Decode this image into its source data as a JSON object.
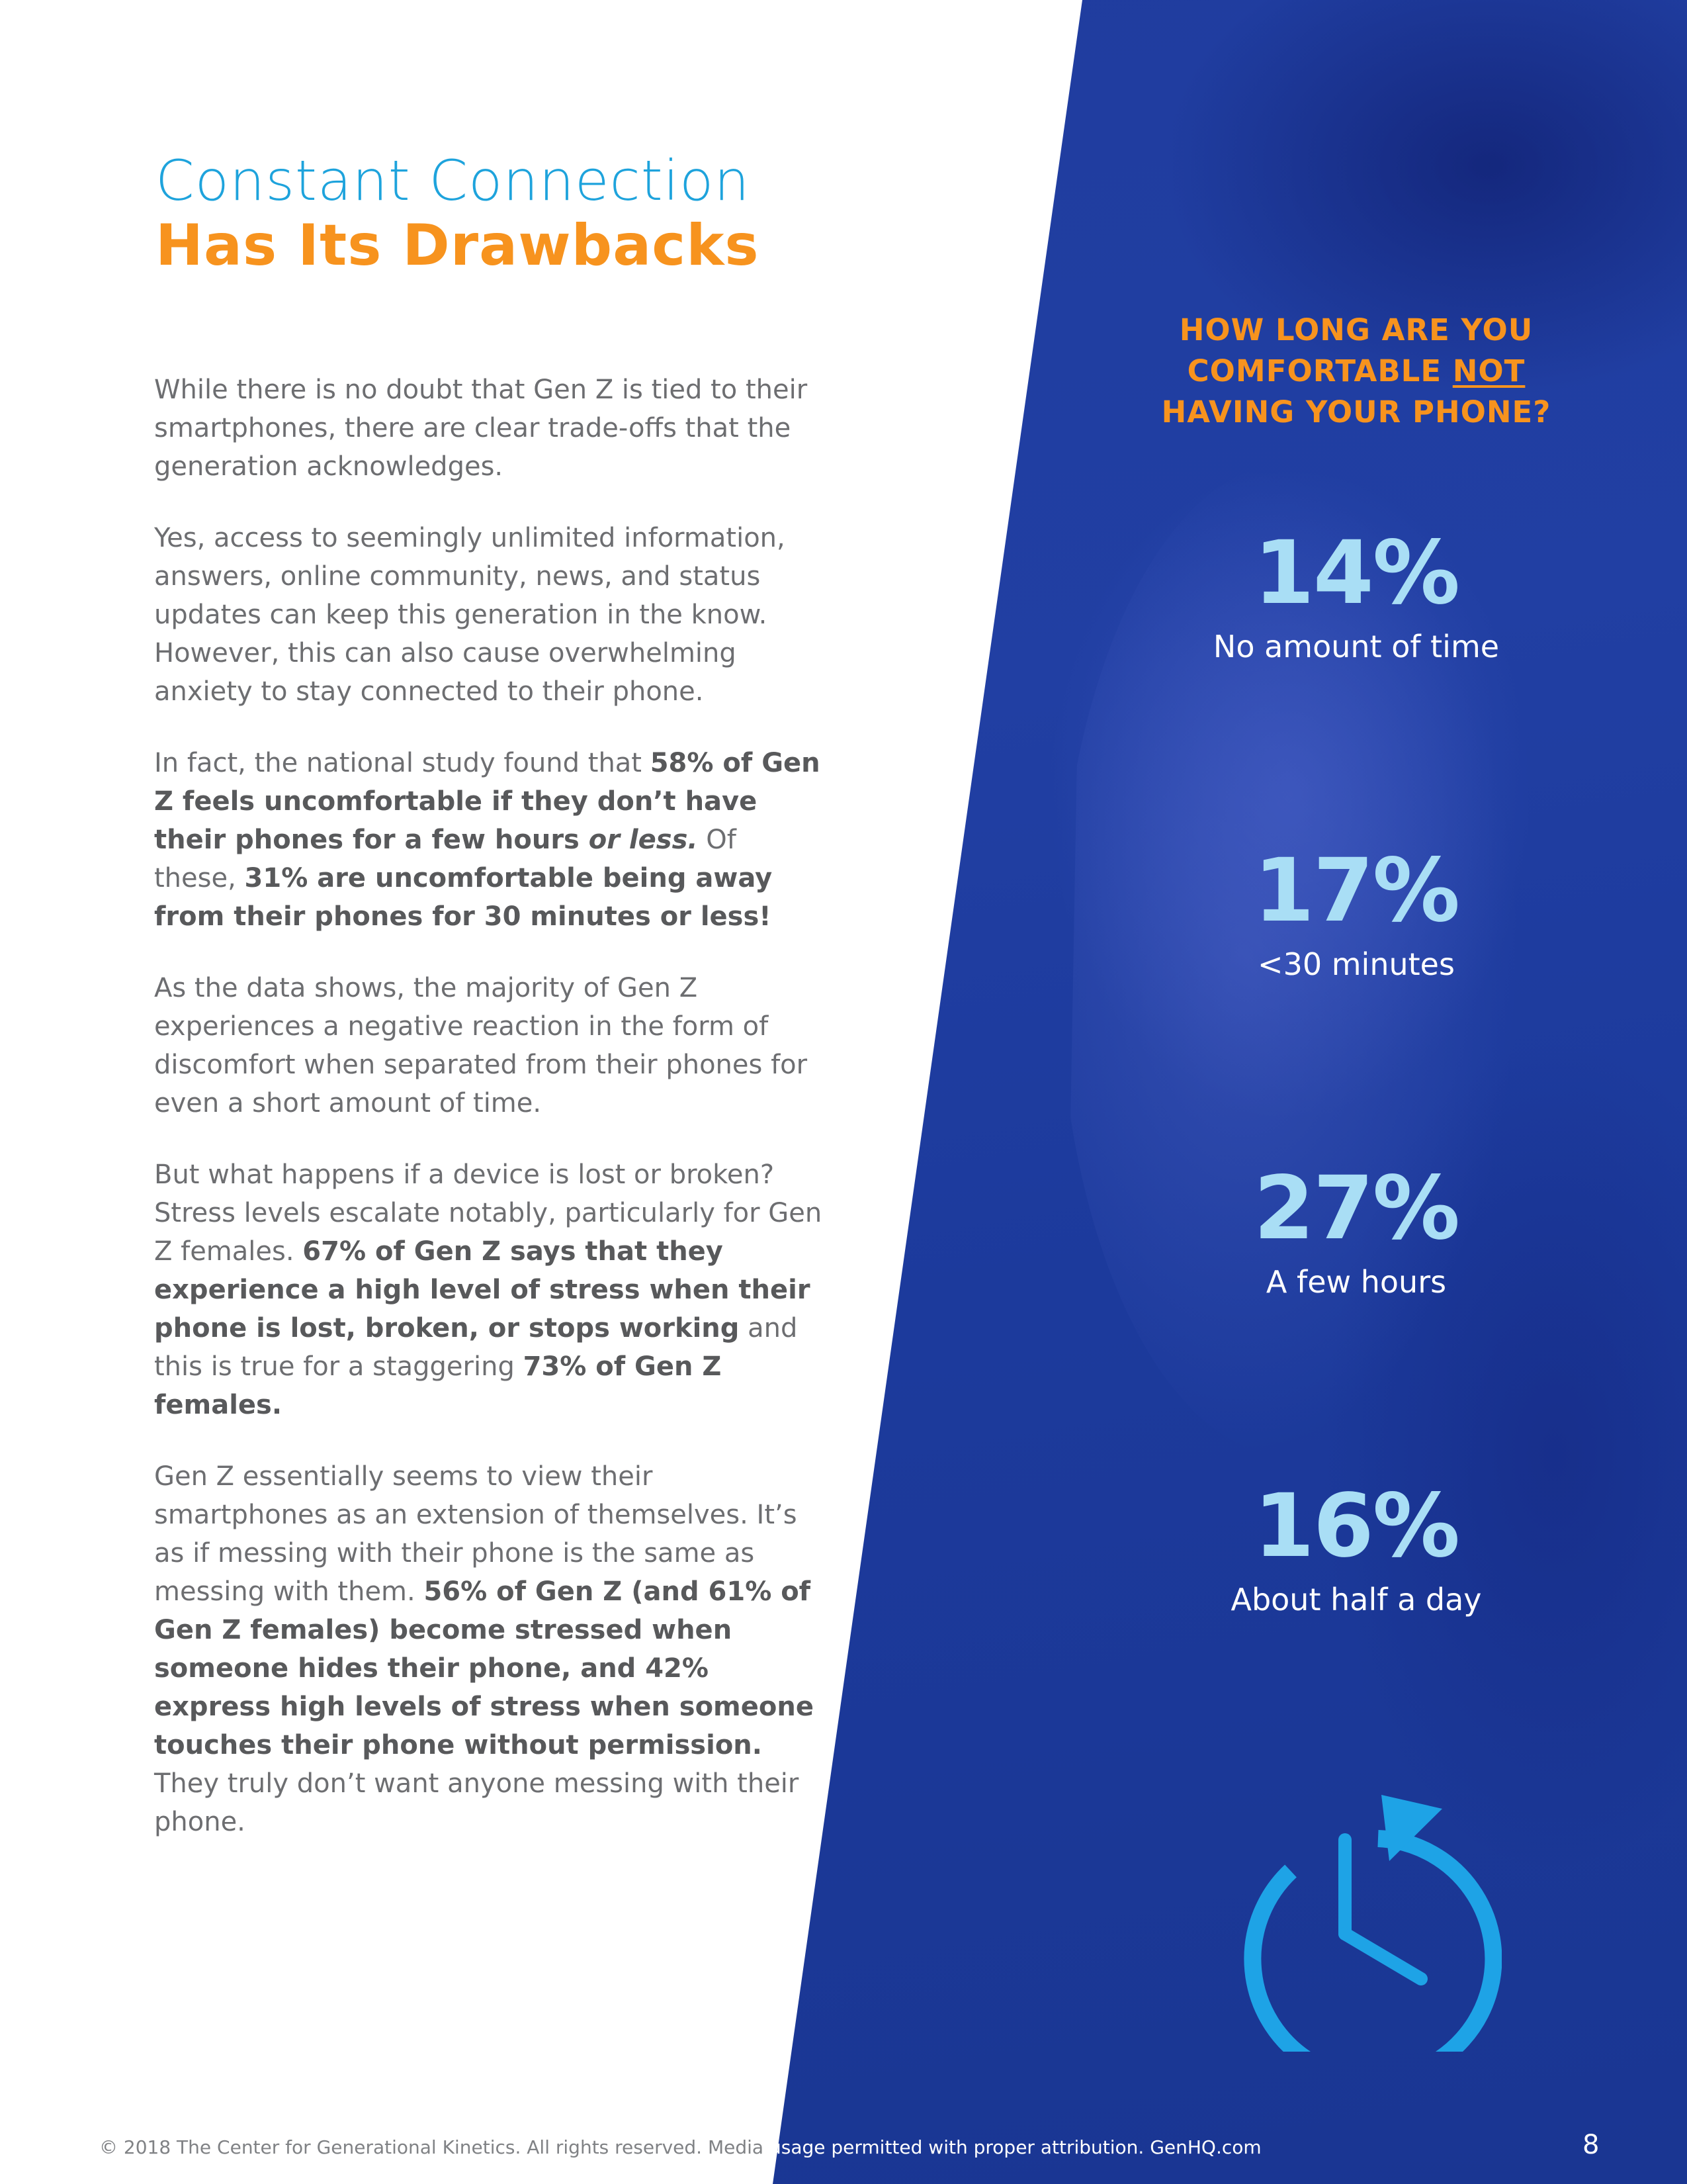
{
  "title": {
    "line1": "Constant Connection",
    "line2": "Has Its Drawbacks"
  },
  "body": {
    "p1": "While there is no doubt that Gen Z is tied to their smartphones, there are clear trade-offs that the generation acknowledges.",
    "p2": "Yes, access to seemingly unlimited information, answers, online community, news, and status updates can keep this generation in the know. However, this can also cause overwhelming anxiety to stay connected to their phone.",
    "p3": {
      "t1": "In fact, the national study found that ",
      "b1": "58% of Gen Z feels uncomfortable if they don’t have their phones for a few hours ",
      "b1_italic": "or less.",
      "t2": " Of these, ",
      "b2": "31% are uncomfortable being away from their phones for 30 minutes or less!"
    },
    "p4": "As the data shows, the majority of Gen Z experiences a negative reaction in the form of discomfort when separated from their phones for even a short amount of time.",
    "p5": {
      "t1": "But what happens if a device is lost or broken? Stress levels escalate notably, particularly for Gen Z females. ",
      "b1": "67% of Gen Z says that they experience a high level of stress when their phone is lost, broken, or stops working",
      "t2": " and this is true for a staggering ",
      "b2": "73% of Gen Z females."
    },
    "p6": {
      "t1": "Gen Z essentially seems to view their smartphones as an extension of themselves. It’s as if messing with their phone is the same as messing with them. ",
      "b1": "56% of Gen Z (and 61% of Gen Z females) become stressed when someone hides their phone, and 42% express high levels of stress when someone touches their phone without permission.",
      "t2": " They truly don’t want anyone messing with their phone."
    }
  },
  "question": {
    "line1": "HOW LONG ARE YOU",
    "line2_pre": "COMFORTABLE ",
    "line2_underlined": "NOT",
    "line3": "HAVING YOUR PHONE?"
  },
  "stats": [
    {
      "value": "14%",
      "label": "No amount of time"
    },
    {
      "value": "17%",
      "label": "<30 minutes"
    },
    {
      "value": "27%",
      "label": "A few hours"
    },
    {
      "value": "16%",
      "label": "About half a day"
    }
  ],
  "footer": {
    "left": "© 2018 The Center for Generational Kinetics. All rights reserved. Media ",
    "right": "usage permitted with proper attribution. GenHQ.com",
    "page_number": "8"
  },
  "colors": {
    "title_blue": "#1ea3dc",
    "accent_orange": "#f7931e",
    "panel_blue": "#213fa3",
    "stat_blue": "#a9def5",
    "timer_blue": "#1ea3e6",
    "body_gray": "#6d6e71"
  },
  "icons": {
    "timer": "timer-icon"
  }
}
